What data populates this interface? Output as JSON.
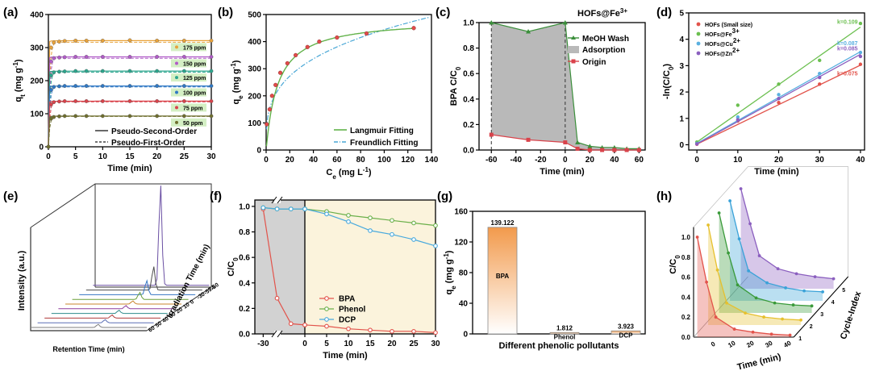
{
  "panels": {
    "a": "(a)",
    "b": "(b)",
    "c": "(c)",
    "d": "(d)",
    "e": "(e)",
    "f": "(f)",
    "g": "(g)",
    "h": "(h)"
  },
  "chart_data": [
    {
      "id": "a",
      "type": "line",
      "xlabel": "Time (min)",
      "ylabel": "q_t (mg g^-1)",
      "ylabel_main": "q",
      "ylabel_sub": "t",
      "ylabel_rest": " (mg g",
      "ylabel_sup": "-1",
      "ylabel_end": ")",
      "xlim": [
        0,
        30
      ],
      "ylim": [
        0,
        400
      ],
      "xticks": [
        0,
        5,
        10,
        15,
        20,
        25,
        30
      ],
      "yticks": [
        0,
        100,
        200,
        300,
        400
      ],
      "grid": false,
      "legend_position": "bottom-right",
      "legend": [
        "Pseudo-Second-Order",
        "Pseudo-First-Order"
      ],
      "series": [
        {
          "name": "175 ppm",
          "color": "#e8a23a",
          "qe": 321,
          "k": 1.6,
          "x": [
            0,
            0.5,
            1,
            2,
            3,
            5,
            7,
            10,
            15,
            20,
            25,
            30
          ],
          "y": [
            0,
            300,
            315,
            318,
            320,
            321,
            321,
            321,
            322,
            321,
            321,
            321
          ]
        },
        {
          "name": "150 ppm",
          "color": "#b05bc7",
          "qe": 272,
          "k": 1.6,
          "x": [
            0,
            0.5,
            1,
            2,
            3,
            5,
            7,
            10,
            15,
            20,
            25,
            30
          ],
          "y": [
            0,
            258,
            268,
            270,
            271,
            272,
            272,
            272,
            272,
            272,
            272,
            272
          ]
        },
        {
          "name": "125 ppm",
          "color": "#2ca58d",
          "qe": 229,
          "k": 1.6,
          "x": [
            0,
            0.5,
            1,
            2,
            3,
            5,
            7,
            10,
            15,
            20,
            25,
            30
          ],
          "y": [
            0,
            216,
            225,
            227,
            228,
            229,
            229,
            229,
            229,
            229,
            229,
            229
          ]
        },
        {
          "name": "100 ppm",
          "color": "#2f78c4",
          "qe": 184,
          "k": 1.6,
          "x": [
            0,
            0.5,
            1,
            2,
            3,
            5,
            7,
            10,
            15,
            20,
            25,
            30
          ],
          "y": [
            0,
            172,
            181,
            183,
            184,
            184,
            184,
            184,
            184,
            184,
            184,
            184
          ]
        },
        {
          "name": "75 ppm",
          "color": "#d9434b",
          "qe": 138,
          "k": 1.6,
          "x": [
            0,
            0.5,
            1,
            2,
            3,
            5,
            7,
            10,
            15,
            20,
            25,
            30
          ],
          "y": [
            0,
            128,
            135,
            137,
            138,
            138,
            138,
            138,
            138,
            138,
            138,
            138
          ]
        },
        {
          "name": "50 ppm",
          "color": "#6e6e2e",
          "qe": 93,
          "k": 1.6,
          "x": [
            0,
            0.5,
            1,
            2,
            3,
            5,
            7,
            10,
            15,
            20,
            25,
            30
          ],
          "y": [
            0,
            85,
            90,
            92,
            93,
            93,
            93,
            93,
            93,
            93,
            93,
            93
          ]
        }
      ]
    },
    {
      "id": "b",
      "type": "scatter",
      "xlabel_main": "C",
      "xlabel_sub": "e",
      "xlabel_rest": " (mg L",
      "xlabel_sup": "-1",
      "xlabel_end": ")",
      "ylabel_main": "q",
      "ylabel_sub": "e",
      "ylabel_rest": " (mg g",
      "ylabel_sup": "-1",
      "ylabel_end": ")",
      "xlim": [
        0,
        140
      ],
      "ylim": [
        0,
        500
      ],
      "xticks": [
        0,
        20,
        40,
        60,
        80,
        100,
        120,
        140
      ],
      "yticks": [
        0,
        100,
        200,
        300,
        400,
        500
      ],
      "legend_position": "bottom-right",
      "legend": [
        "Langmuir Fitting",
        "Freundlich Fitting"
      ],
      "points": {
        "x": [
          0.5,
          3,
          5,
          8,
          12,
          18,
          25,
          35,
          45,
          60,
          85,
          125
        ],
        "y": [
          95,
          150,
          200,
          240,
          285,
          320,
          350,
          380,
          400,
          415,
          430,
          450
        ]
      },
      "langmuir": {
        "qmax": 485,
        "KL": 0.1
      },
      "freundlich": {
        "KF": 110,
        "n": 3.3
      }
    },
    {
      "id": "c",
      "type": "line",
      "title_main": "HOFs@Fe",
      "title_sup": "3+",
      "xlabel": "Time (min)",
      "ylabel": "BPA C/C0",
      "ylabel_main": "BPA C/C",
      "ylabel_sub": "0",
      "xlim": [
        -70,
        65
      ],
      "ylim": [
        0,
        1.0
      ],
      "xticks": [
        -60,
        -40,
        -20,
        0,
        20,
        40,
        60
      ],
      "yticks": [
        0.0,
        0.2,
        0.4,
        0.6,
        0.8,
        1.0
      ],
      "legend_position": "top-right",
      "legend": [
        "MeOH Wash",
        "Adsorption",
        "Origin"
      ],
      "series": [
        {
          "name": "MeOH Wash",
          "color": "#3b8f3b",
          "x": [
            -60,
            -30,
            0,
            10,
            20,
            30,
            40,
            50,
            60
          ],
          "y": [
            1.0,
            0.93,
            1.0,
            0.06,
            0.03,
            0.02,
            0.02,
            0.01,
            0.01
          ]
        },
        {
          "name": "Origin",
          "color": "#d9434b",
          "x": [
            -60,
            -30,
            0,
            10,
            20,
            30,
            40,
            50,
            60
          ],
          "y": [
            0.12,
            0.08,
            0.06,
            0.01,
            0.0,
            0.0,
            0.0,
            0.0,
            0.0
          ]
        }
      ]
    },
    {
      "id": "d",
      "type": "scatter",
      "xlabel": "Time (min)",
      "ylabel": "-ln(C/C0)",
      "ylabel_main": "-ln(C/C",
      "ylabel_sub": "0",
      "ylabel_end": ")",
      "xlim": [
        -2,
        41
      ],
      "ylim": [
        -0.2,
        5
      ],
      "xticks": [
        0,
        10,
        20,
        30,
        40
      ],
      "yticks": [
        0,
        1,
        2,
        3,
        4,
        5
      ],
      "legend_position": "top-left",
      "legend": [
        "HOFs (Small size)",
        "HOFs@Fe3+",
        "HOFs@Cu2+",
        "HOFs@Zn2+"
      ],
      "legend_text": [
        {
          "main": "HOFs (Small size)",
          "sup": ""
        },
        {
          "main": "HOFs@Fe",
          "sup": "3+"
        },
        {
          "main": "HOFs@Cu",
          "sup": "2+"
        },
        {
          "main": "HOFs@Zn",
          "sup": "2+"
        }
      ],
      "series": [
        {
          "name": "HOFs (Small size)",
          "color": "#e2534b",
          "k": "k=0.075",
          "slope": 0.075,
          "x": [
            0,
            10,
            20,
            30,
            40
          ],
          "y": [
            0.02,
            0.9,
            1.6,
            2.3,
            3.05
          ]
        },
        {
          "name": "HOFs@Fe3+",
          "color": "#6bbf4f",
          "k": "k=0.109",
          "slope": 0.109,
          "x": [
            0,
            10,
            20,
            30,
            40
          ],
          "y": [
            0.1,
            1.5,
            2.3,
            3.2,
            4.6
          ]
        },
        {
          "name": "HOFs@Cu2+",
          "color": "#5ab0e0",
          "k": "k=0.087",
          "slope": 0.087,
          "x": [
            0,
            10,
            20,
            30,
            40
          ],
          "y": [
            0.05,
            1.05,
            1.9,
            2.7,
            3.5
          ]
        },
        {
          "name": "HOFs@Zn2+",
          "color": "#8b5fbf",
          "k": "k=0.085",
          "slope": 0.085,
          "x": [
            0,
            10,
            20,
            30,
            40
          ],
          "y": [
            0.03,
            0.95,
            1.75,
            2.55,
            3.35
          ]
        }
      ]
    },
    {
      "id": "e",
      "type": "line",
      "xlabel": "Retention Time (min)",
      "ylabel": "Intensity (a.u.)",
      "zlabel": "Irradiation Time (min)",
      "ztick_labels": [
        "-60",
        "-59.5",
        "-30",
        "0",
        "10",
        "20",
        "30",
        "40",
        "50",
        "60"
      ]
    },
    {
      "id": "f",
      "type": "line",
      "xlabel": "Time (min)",
      "ylabel": "C/C0",
      "ylabel_main": "C/C",
      "ylabel_sub": "0",
      "xticks_labels": [
        "-30",
        "0",
        "5",
        "10",
        "15",
        "20",
        "25",
        "30"
      ],
      "yticks": [
        0.0,
        0.2,
        0.4,
        0.6,
        0.8,
        1.0
      ],
      "ylim": [
        0,
        1.05
      ],
      "legend_position": "bottom-right",
      "legend": [
        "BPA",
        "Phenol",
        "DCP"
      ],
      "series": [
        {
          "name": "BPA",
          "color": "#e2534b",
          "x": [
            -30,
            -25,
            -20,
            -15,
            0,
            5,
            10,
            15,
            20,
            25,
            30
          ],
          "y": [
            0.98,
            0.28,
            0.08,
            0.07,
            0.07,
            0.06,
            0.04,
            0.03,
            0.02,
            0.02,
            0.01
          ]
        },
        {
          "name": "Phenol",
          "color": "#6bb04a",
          "x": [
            -30,
            -25,
            -20,
            -15,
            0,
            5,
            10,
            15,
            20,
            25,
            30
          ],
          "y": [
            0.99,
            0.98,
            0.98,
            0.98,
            0.98,
            0.96,
            0.93,
            0.91,
            0.89,
            0.87,
            0.85
          ]
        },
        {
          "name": "DCP",
          "color": "#48a9dd",
          "x": [
            -30,
            -25,
            -20,
            -15,
            0,
            5,
            10,
            15,
            20,
            25,
            30
          ],
          "y": [
            0.99,
            0.98,
            0.98,
            0.98,
            0.98,
            0.94,
            0.88,
            0.81,
            0.78,
            0.74,
            0.69
          ]
        }
      ]
    },
    {
      "id": "g",
      "type": "bar",
      "xlabel": "Different phenolic pollutants",
      "ylabel_main": "q",
      "ylabel_sub": "e",
      "ylabel_rest": " (mg g",
      "ylabel_sup": "-1",
      "ylabel_end": ")",
      "ylim": [
        0,
        160
      ],
      "yticks": [
        0,
        40,
        80,
        120,
        160
      ],
      "categories": [
        "BPA",
        "Phenol",
        "DCP"
      ],
      "values": [
        139.122,
        1.812,
        3.923
      ],
      "value_labels": [
        "139.122",
        "1.812",
        "3.923"
      ]
    },
    {
      "id": "h",
      "type": "line",
      "xlabel": "Time (min)",
      "ylabel": "C/C0",
      "ylabel_main": "C/C",
      "ylabel_sub": "0",
      "zlabel": "Cycle-Index",
      "xticks": [
        0,
        10,
        20,
        30,
        40
      ],
      "yticks": [
        0.0,
        0.2,
        0.4,
        0.6,
        0.8,
        1.0
      ],
      "zticks": [
        1,
        2,
        3,
        4,
        5
      ],
      "series": [
        {
          "name": "1",
          "color": "#e2534b",
          "x": [
            -10,
            -5,
            0,
            10,
            20,
            30,
            40
          ],
          "y": [
            1.0,
            0.55,
            0.2,
            0.08,
            0.05,
            0.03,
            0.02
          ]
        },
        {
          "name": "2",
          "color": "#e6c02e",
          "x": [
            -10,
            -5,
            0,
            10,
            20,
            30,
            40
          ],
          "y": [
            1.0,
            0.55,
            0.22,
            0.12,
            0.08,
            0.06,
            0.05
          ]
        },
        {
          "name": "3",
          "color": "#3a9a3a",
          "x": [
            -10,
            -5,
            0,
            10,
            20,
            30,
            40
          ],
          "y": [
            1.0,
            0.6,
            0.28,
            0.15,
            0.1,
            0.08,
            0.07
          ]
        },
        {
          "name": "4",
          "color": "#3aa2d8",
          "x": [
            -10,
            -5,
            0,
            10,
            20,
            30,
            40
          ],
          "y": [
            1.0,
            0.62,
            0.3,
            0.18,
            0.13,
            0.1,
            0.09
          ]
        },
        {
          "name": "5",
          "color": "#8b5fbf",
          "x": [
            -10,
            -5,
            0,
            10,
            20,
            30,
            40
          ],
          "y": [
            1.0,
            0.65,
            0.33,
            0.2,
            0.15,
            0.12,
            0.1
          ]
        }
      ]
    }
  ]
}
